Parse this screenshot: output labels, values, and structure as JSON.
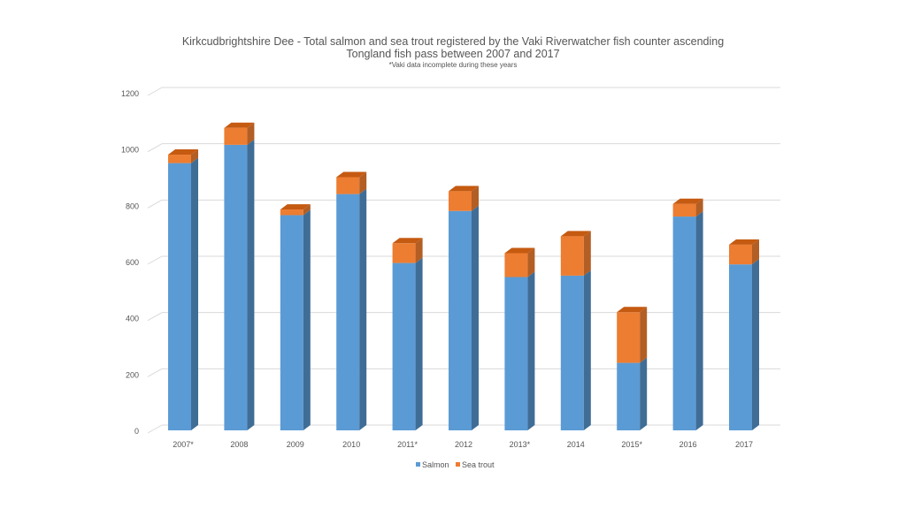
{
  "chart_data": {
    "type": "bar",
    "stacked": true,
    "style": "3d-column",
    "title": "Kirkcudbrightshire Dee - Total salmon and sea trout registered by the Vaki Riverwatcher fish counter ascending",
    "title_line2": "Tongland fish pass between 2007 and 2017",
    "subtitle": "*Vaki data incomplete during these years",
    "categories": [
      "2007*",
      "2008",
      "2009",
      "2010",
      "2011*",
      "2012",
      "2013*",
      "2014",
      "2015*",
      "2016",
      "2017"
    ],
    "series": [
      {
        "name": "Salmon",
        "color": "#5b9bd5",
        "side_color": "#3f6d96",
        "top_color": "#5b9bd5",
        "values": [
          950,
          1015,
          765,
          840,
          595,
          780,
          545,
          550,
          240,
          760,
          590
        ]
      },
      {
        "name": "Sea trout",
        "color": "#ed7d31",
        "side_color": "#b25e24",
        "top_color": "#c55a11",
        "values": [
          30,
          60,
          20,
          60,
          70,
          70,
          85,
          140,
          180,
          45,
          70
        ]
      }
    ],
    "y_ticks": [
      "0",
      "200",
      "400",
      "600",
      "800",
      "1000",
      "1200"
    ],
    "ylim": [
      0,
      1200
    ],
    "grid": true,
    "legend_position": "bottom"
  }
}
